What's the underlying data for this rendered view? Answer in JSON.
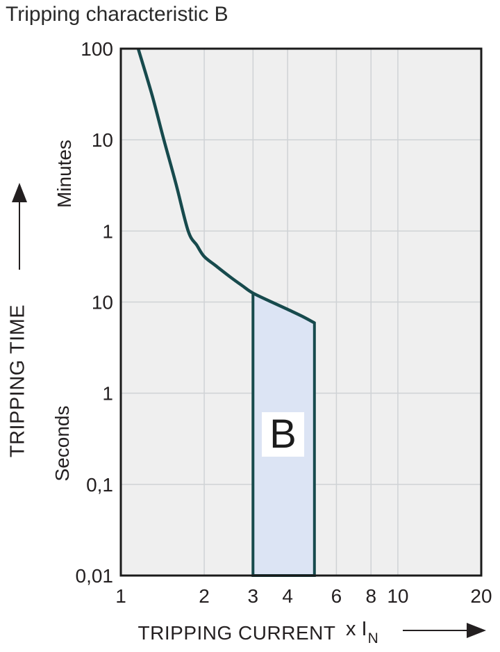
{
  "chart_data": {
    "type": "line",
    "title": "Tripping characteristic B",
    "x_axis": {
      "label": "TRIPPING CURRENT",
      "unit": {
        "prefix": "x I",
        "subscript": "N"
      },
      "scale": "log",
      "min": 1,
      "max": 20,
      "tick_values": [
        1,
        2,
        3,
        4,
        6,
        8,
        10,
        20
      ],
      "tick_labels": [
        "1",
        "2",
        "3",
        "4",
        "6",
        "8",
        "10",
        "20"
      ],
      "gridline_values": [
        2,
        3,
        4,
        6,
        8,
        10
      ]
    },
    "y_axis": {
      "label": "TRIPPING TIME",
      "scale": "log",
      "min_seconds": 0.01,
      "max_seconds": 6000,
      "sections": [
        {
          "label": "Minutes"
        },
        {
          "label": "Seconds"
        }
      ],
      "ticks": [
        {
          "label": "100",
          "seconds": 6000
        },
        {
          "label": "10",
          "seconds": 600
        },
        {
          "label": "1",
          "seconds": 60
        },
        {
          "label": "10",
          "seconds": 10
        },
        {
          "label": "1",
          "seconds": 1
        },
        {
          "label": "0,1",
          "seconds": 0.1
        },
        {
          "label": "0,01",
          "seconds": 0.01
        }
      ],
      "gridline_seconds": [
        600,
        60,
        10,
        1,
        0.1
      ]
    },
    "series": [
      {
        "name": "tripping-curve",
        "color": "#174a4d",
        "x_in": [
          1.155,
          1.3,
          1.43,
          1.58,
          1.75,
          1.88,
          2.0,
          2.2,
          2.5,
          2.75,
          3.0,
          3.5,
          4.0,
          4.5,
          5.0
        ],
        "t_seconds": [
          6000,
          1800,
          600,
          200,
          60,
          42,
          31.5,
          25,
          18.5,
          15,
          12.5,
          10,
          8.3,
          7.0,
          5.9
        ]
      }
    ],
    "region": {
      "label": "B",
      "x_range_in": [
        3,
        5
      ],
      "top_boundary_x_in": [
        3.0,
        3.5,
        4.0,
        4.5,
        5.0
      ],
      "top_boundary_seconds": [
        12.5,
        10,
        8.3,
        7.0,
        5.9
      ],
      "bottom_seconds": 0.01,
      "fill": "#dce4f4",
      "border": "#174a4d"
    },
    "colors": {
      "plot_background": "#efefef",
      "gridline": "#cfd2d5",
      "border": "#1a1a1a",
      "text": "#231f20",
      "accent": "#174a4d"
    },
    "legend": {
      "visible": false
    },
    "grid": "on"
  }
}
